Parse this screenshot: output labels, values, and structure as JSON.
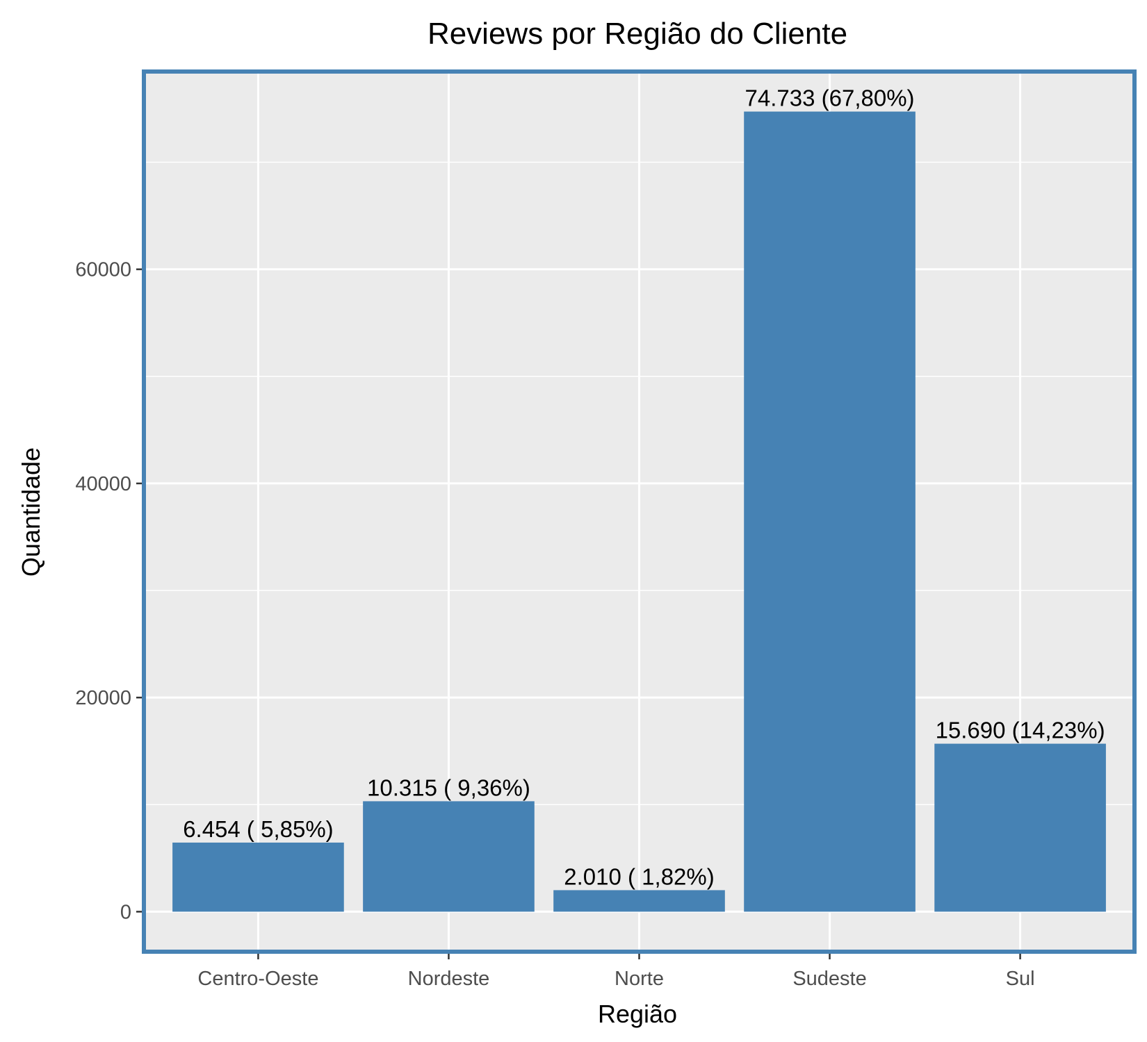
{
  "chart_data": {
    "type": "bar",
    "title": "Reviews por Região do Cliente",
    "xlabel": "Região",
    "ylabel": "Quantidade",
    "categories": [
      "Centro-Oeste",
      "Nordeste",
      "Norte",
      "Sudeste",
      "Sul"
    ],
    "values": [
      6454,
      10315,
      2010,
      74733,
      15690
    ],
    "data_labels": [
      "6.454 ( 5,85%)",
      "10.315 ( 9,36%)",
      "2.010 ( 1,82%)",
      "74.733 (67,80%)",
      "15.690 (14,23%)"
    ],
    "y_ticks": [
      0,
      20000,
      40000,
      60000
    ],
    "y_tick_labels": [
      "0",
      "20000",
      "40000",
      "60000"
    ],
    "ylim": [
      -3737,
      78470
    ],
    "grid": true,
    "legend": "none",
    "colors": {
      "bar": "#4682B4",
      "panel_background": "#EBEBEB",
      "panel_border": "#4682B4",
      "grid": "#FFFFFF",
      "tick_text": "#4D4D4D"
    }
  }
}
